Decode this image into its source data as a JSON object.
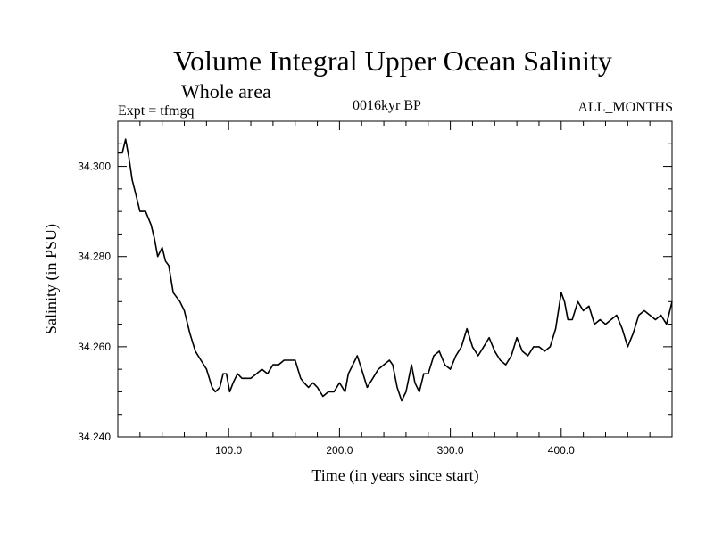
{
  "chart_data": {
    "type": "line",
    "title": "Volume Integral Upper Ocean Salinity",
    "subtitle": "Whole area",
    "annotations": {
      "expt": "Expt = tfmgq",
      "period": "0016kyr BP",
      "months": "ALL_MONTHS"
    },
    "xlabel": "Time (in years since start)",
    "ylabel": "Salinity (in PSU)",
    "xlim": [
      0,
      500
    ],
    "ylim": [
      34.24,
      34.31
    ],
    "xticks": [
      100,
      200,
      300,
      400
    ],
    "xtick_labels": [
      "100.0",
      "200.0",
      "300.0",
      "400.0"
    ],
    "yticks": [
      34.24,
      34.26,
      34.28,
      34.3
    ],
    "ytick_labels": [
      "34.240",
      "34.260",
      "34.280",
      "34.300"
    ],
    "grid": false,
    "series": [
      {
        "color": "#000000",
        "x": [
          0,
          4,
          7,
          10,
          13,
          16,
          20,
          25,
          30,
          33,
          36,
          40,
          43,
          46,
          50,
          53,
          56,
          60,
          65,
          70,
          75,
          80,
          85,
          88,
          92,
          95,
          98,
          101,
          104,
          108,
          112,
          116,
          120,
          125,
          130,
          135,
          140,
          145,
          150,
          155,
          160,
          165,
          168,
          172,
          176,
          180,
          185,
          190,
          195,
          200,
          205,
          208,
          212,
          216,
          220,
          225,
          230,
          235,
          240,
          245,
          248,
          252,
          256,
          260,
          265,
          268,
          272,
          276,
          280,
          285,
          290,
          295,
          300,
          305,
          310,
          315,
          320,
          325,
          330,
          335,
          340,
          345,
          350,
          355,
          360,
          365,
          370,
          375,
          380,
          385,
          390,
          395,
          400,
          403,
          406,
          410,
          415,
          420,
          425,
          430,
          435,
          440,
          445,
          450,
          455,
          460,
          465,
          470,
          475,
          480,
          485,
          490,
          495,
          500
        ],
        "y": [
          34.303,
          34.303,
          34.306,
          34.302,
          34.297,
          34.294,
          34.29,
          34.29,
          34.287,
          34.284,
          34.28,
          34.282,
          34.279,
          34.278,
          34.272,
          34.271,
          34.27,
          34.268,
          34.263,
          34.259,
          34.257,
          34.255,
          34.251,
          34.25,
          34.251,
          34.254,
          34.254,
          34.25,
          34.252,
          34.254,
          34.253,
          34.253,
          34.253,
          34.254,
          34.255,
          34.254,
          34.256,
          34.256,
          34.257,
          34.257,
          34.257,
          34.253,
          34.252,
          34.251,
          34.252,
          34.251,
          34.249,
          34.25,
          34.25,
          34.252,
          34.25,
          34.254,
          34.256,
          34.258,
          34.255,
          34.251,
          34.253,
          34.255,
          34.256,
          34.257,
          34.256,
          34.251,
          34.248,
          34.25,
          34.256,
          34.252,
          34.25,
          34.254,
          34.254,
          34.258,
          34.259,
          34.256,
          34.255,
          34.258,
          34.26,
          34.264,
          34.26,
          34.258,
          34.26,
          34.262,
          34.259,
          34.257,
          34.256,
          34.258,
          34.262,
          34.259,
          34.258,
          34.26,
          34.26,
          34.259,
          34.26,
          34.264,
          34.272,
          34.27,
          34.266,
          34.266,
          34.27,
          34.268,
          34.269,
          34.265,
          34.266,
          34.265,
          34.266,
          34.267,
          34.264,
          34.26,
          34.263,
          34.267,
          34.268,
          34.267,
          34.266,
          34.267,
          34.265,
          34.27
        ]
      }
    ]
  }
}
